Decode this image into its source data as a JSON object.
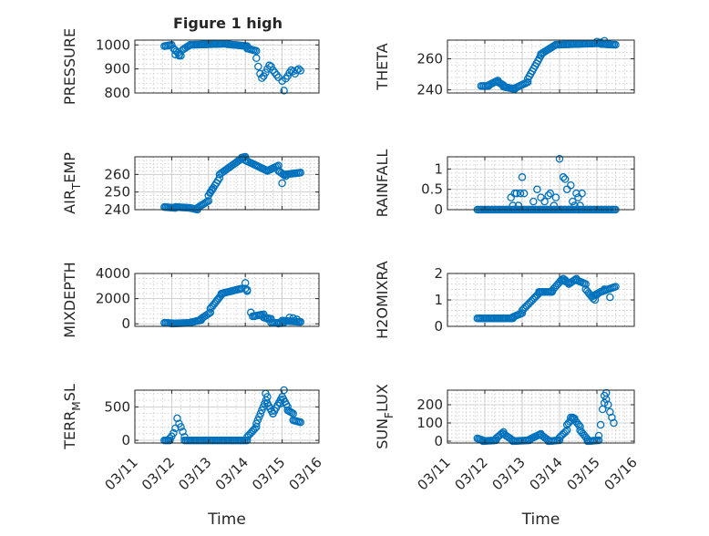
{
  "figure_title": "Figure 1 high",
  "marker_color": "#0072BD",
  "chart_data": [
    {
      "type": "scatter",
      "ylabel_main": "PRESSURE",
      "ylabel_sub": "",
      "ylabel_tail": "",
      "xlim": [
        0,
        5
      ],
      "ylim": [
        800,
        1020
      ],
      "yticks": [
        800,
        900,
        1000
      ],
      "xticks": [],
      "xticklabels": [],
      "xlabel": "",
      "title": "Figure 1 high",
      "segments": [
        [
          0.8,
          1,
          995,
          1000
        ],
        [
          1.05,
          1.25,
          985,
          955
        ],
        [
          1.3,
          1.5,
          980,
          1000
        ],
        [
          1.5,
          2.5,
          1000,
          1005
        ],
        [
          2.5,
          3.05,
          1003,
          995
        ],
        [
          3.05,
          3.3,
          985,
          975
        ]
      ],
      "points": [
        [
          1.1,
          960
        ],
        [
          1.2,
          955
        ],
        [
          3.3,
          945
        ],
        [
          3.35,
          910
        ],
        [
          3.4,
          880
        ],
        [
          3.45,
          862
        ],
        [
          3.5,
          870
        ],
        [
          3.55,
          885
        ],
        [
          3.6,
          900
        ],
        [
          3.65,
          915
        ],
        [
          3.7,
          910
        ],
        [
          3.75,
          895
        ],
        [
          3.8,
          885
        ],
        [
          3.85,
          875
        ],
        [
          3.9,
          865
        ],
        [
          4.0,
          850
        ],
        [
          4.05,
          810
        ],
        [
          4.1,
          860
        ],
        [
          4.15,
          870
        ],
        [
          4.2,
          885
        ],
        [
          4.25,
          895
        ],
        [
          4.3,
          890
        ],
        [
          4.35,
          880
        ],
        [
          4.4,
          895
        ],
        [
          4.45,
          900
        ],
        [
          4.5,
          893
        ]
      ]
    },
    {
      "type": "scatter",
      "ylabel_main": "THETA",
      "ylabel_sub": "",
      "ylabel_tail": "",
      "xlim": [
        0,
        5
      ],
      "ylim": [
        238,
        272
      ],
      "yticks": [
        240,
        260
      ],
      "xticks": [],
      "xticklabels": [],
      "xlabel": "",
      "segments": [
        [
          0.9,
          1.1,
          242.5,
          242.5
        ],
        [
          1.1,
          1.35,
          243,
          246
        ],
        [
          1.35,
          1.5,
          245,
          243
        ],
        [
          1.5,
          1.8,
          242,
          240.5
        ],
        [
          1.8,
          2.15,
          241,
          245
        ],
        [
          2.15,
          2.5,
          247,
          262
        ],
        [
          2.5,
          2.9,
          263,
          269
        ],
        [
          2.9,
          4.1,
          269,
          270
        ],
        [
          4.1,
          4.5,
          269.5,
          269
        ]
      ],
      "points": [
        [
          4.0,
          271
        ],
        [
          4.1,
          270.5
        ],
        [
          4.2,
          271.5
        ]
      ]
    },
    {
      "type": "scatter",
      "ylabel_main": "AIR",
      "ylabel_sub": "T",
      "ylabel_tail": "EMP",
      "xlim": [
        0,
        5
      ],
      "ylim": [
        240,
        270
      ],
      "yticks": [
        240,
        250,
        260
      ],
      "xticks": [],
      "xticklabels": [],
      "xlabel": "",
      "segments": [
        [
          0.8,
          1.1,
          241.5,
          241
        ],
        [
          1.1,
          1.5,
          241.5,
          241
        ],
        [
          1.5,
          1.7,
          241,
          240
        ],
        [
          1.7,
          2.0,
          241,
          245
        ],
        [
          2.0,
          2.3,
          248,
          258
        ],
        [
          2.3,
          2.9,
          260,
          269
        ],
        [
          2.9,
          3.0,
          269.5,
          270
        ],
        [
          3.0,
          3.3,
          268,
          265
        ],
        [
          3.3,
          3.6,
          265,
          262
        ],
        [
          3.6,
          3.9,
          262,
          265
        ],
        [
          3.9,
          4.1,
          262,
          259
        ],
        [
          4.1,
          4.5,
          260,
          261
        ]
      ],
      "points": [
        [
          4.0,
          255
        ],
        [
          2.05,
          250
        ],
        [
          2.1,
          251.5
        ]
      ]
    },
    {
      "type": "scatter",
      "ylabel_main": "RAINFALL",
      "ylabel_sub": "",
      "ylabel_tail": "",
      "xlim": [
        0,
        5
      ],
      "ylim": [
        0,
        1.3
      ],
      "yticks": [
        0,
        0.5,
        1
      ],
      "yticklabels": [
        "0",
        "0.5",
        "1"
      ],
      "xticks": [],
      "xticklabels": [],
      "xlabel": "",
      "segments": [
        [
          0.8,
          4.5,
          0,
          0
        ]
      ],
      "points": [
        [
          1.7,
          0.3
        ],
        [
          1.75,
          0.1
        ],
        [
          1.8,
          0.4
        ],
        [
          1.85,
          0.4
        ],
        [
          1.9,
          0.1
        ],
        [
          1.95,
          0.4
        ],
        [
          2.0,
          0.8
        ],
        [
          2.05,
          0.4
        ],
        [
          2.3,
          0.2
        ],
        [
          2.4,
          0.5
        ],
        [
          2.5,
          0.3
        ],
        [
          2.6,
          0.2
        ],
        [
          2.7,
          0.35
        ],
        [
          2.75,
          0.4
        ],
        [
          2.85,
          0.1
        ],
        [
          2.9,
          0.3
        ],
        [
          3.0,
          1.25
        ],
        [
          3.1,
          0.8
        ],
        [
          3.15,
          0.75
        ],
        [
          3.2,
          0.5
        ],
        [
          3.3,
          0.6
        ],
        [
          3.35,
          0.2
        ],
        [
          3.4,
          0.1
        ],
        [
          3.45,
          0.4
        ],
        [
          3.5,
          0.3
        ],
        [
          3.55,
          0.1
        ],
        [
          3.6,
          0.4
        ]
      ]
    },
    {
      "type": "scatter",
      "ylabel_main": "MIXDEPTH",
      "ylabel_sub": "",
      "ylabel_tail": "",
      "xlim": [
        0,
        5
      ],
      "ylim": [
        -200,
        4000
      ],
      "yticks": [
        0,
        2000,
        4000
      ],
      "xticks": [],
      "xticklabels": [],
      "xlabel": "",
      "segments": [
        [
          0.8,
          1.0,
          80,
          50
        ],
        [
          1.0,
          1.5,
          20,
          80
        ],
        [
          1.5,
          1.8,
          100,
          300
        ],
        [
          1.8,
          2.05,
          400,
          900
        ],
        [
          2.05,
          2.35,
          1200,
          2300
        ],
        [
          2.35,
          2.9,
          2400,
          2800
        ],
        [
          3.0,
          3.05,
          2800,
          2700
        ],
        [
          3.2,
          3.5,
          600,
          750
        ],
        [
          3.5,
          3.7,
          500,
          400
        ],
        [
          3.7,
          4.0,
          100,
          50
        ],
        [
          4.0,
          4.5,
          250,
          150
        ]
      ],
      "points": [
        [
          3.0,
          3250
        ],
        [
          3.05,
          2600
        ],
        [
          3.15,
          900
        ],
        [
          3.25,
          600
        ],
        [
          3.4,
          700
        ],
        [
          3.6,
          400
        ],
        [
          3.9,
          20
        ],
        [
          4.05,
          100
        ],
        [
          4.2,
          500
        ],
        [
          4.3,
          450
        ],
        [
          4.4,
          350
        ]
      ]
    },
    {
      "type": "scatter",
      "ylabel_main": "H2OMIXRA",
      "ylabel_sub": "",
      "ylabel_tail": "",
      "xlim": [
        0,
        5
      ],
      "ylim": [
        0,
        2
      ],
      "yticks": [
        0,
        1,
        2
      ],
      "xticks": [],
      "xticklabels": [],
      "xlabel": "",
      "segments": [
        [
          0.8,
          1.75,
          0.3,
          0.3
        ],
        [
          1.75,
          2.0,
          0.35,
          0.5
        ],
        [
          2.0,
          2.45,
          0.6,
          1.25
        ],
        [
          2.45,
          2.8,
          1.3,
          1.3
        ],
        [
          2.8,
          3.05,
          1.35,
          1.75
        ],
        [
          3.05,
          3.25,
          1.75,
          1.65
        ],
        [
          3.25,
          3.45,
          1.6,
          1.8
        ],
        [
          3.45,
          3.7,
          1.75,
          1.6
        ],
        [
          3.7,
          3.9,
          1.4,
          1.05
        ],
        [
          3.9,
          4.1,
          1.15,
          1.3
        ],
        [
          4.1,
          4.5,
          1.3,
          1.5
        ]
      ],
      "points": [
        [
          3.1,
          1.8
        ],
        [
          3.15,
          1.75
        ],
        [
          3.95,
          1.0
        ],
        [
          4.0,
          1.2
        ],
        [
          4.2,
          1.4
        ],
        [
          4.35,
          1.1
        ]
      ]
    },
    {
      "type": "scatter",
      "ylabel_main": "TERR",
      "ylabel_sub": "M",
      "ylabel_tail": "SL",
      "xlim": [
        0,
        5
      ],
      "ylim": [
        -40,
        750
      ],
      "yticks": [
        0,
        500
      ],
      "xticks": [
        0,
        1,
        2,
        3,
        4,
        5
      ],
      "xticklabels": [
        "03/11",
        "03/12",
        "03/13",
        "03/14",
        "03/15",
        "03/16"
      ],
      "xlabel": "Time",
      "segments": [
        [
          0.8,
          0.95,
          0,
          0
        ],
        [
          1.35,
          3.05,
          0,
          0
        ],
        [
          3.05,
          3.3,
          50,
          200
        ],
        [
          3.3,
          3.6,
          250,
          650
        ],
        [
          3.6,
          3.75,
          550,
          400
        ],
        [
          3.75,
          4.0,
          400,
          650
        ],
        [
          4.0,
          4.15,
          650,
          500
        ],
        [
          4.15,
          4.3,
          450,
          400
        ],
        [
          4.3,
          4.5,
          300,
          270
        ]
      ],
      "points": [
        [
          0.95,
          30
        ],
        [
          1.0,
          60
        ],
        [
          1.05,
          110
        ],
        [
          1.1,
          180
        ],
        [
          1.15,
          330
        ],
        [
          1.2,
          250
        ],
        [
          1.25,
          200
        ],
        [
          1.3,
          130
        ],
        [
          1.35,
          50
        ],
        [
          3.55,
          700
        ],
        [
          4.05,
          750
        ],
        [
          3.95,
          550
        ]
      ]
    },
    {
      "type": "scatter",
      "ylabel_main": "SUN",
      "ylabel_sub": "F",
      "ylabel_tail": "LUX",
      "xlim": [
        0,
        5
      ],
      "ylim": [
        -10,
        280
      ],
      "yticks": [
        0,
        100,
        200
      ],
      "xticks": [
        0,
        1,
        2,
        3,
        4,
        5
      ],
      "xticklabels": [
        "03/11",
        "03/12",
        "03/13",
        "03/14",
        "03/15",
        "03/16"
      ],
      "xlabel": "Time",
      "segments": [
        [
          0.8,
          0.95,
          15,
          5
        ],
        [
          0.95,
          1.3,
          0,
          5
        ],
        [
          1.3,
          1.5,
          15,
          50
        ],
        [
          1.5,
          1.75,
          40,
          5
        ],
        [
          1.75,
          2.2,
          0,
          5
        ],
        [
          2.2,
          2.5,
          10,
          40
        ],
        [
          2.5,
          2.7,
          35,
          5
        ],
        [
          2.7,
          3.0,
          0,
          5
        ],
        [
          3.0,
          3.2,
          20,
          60
        ],
        [
          3.2,
          3.35,
          90,
          125
        ],
        [
          3.35,
          3.55,
          130,
          80
        ],
        [
          3.55,
          3.75,
          60,
          10
        ],
        [
          3.75,
          4.05,
          0,
          5
        ]
      ],
      "points": [
        [
          3.3,
          130
        ],
        [
          3.4,
          125
        ],
        [
          4.05,
          30
        ],
        [
          4.1,
          90
        ],
        [
          4.15,
          175
        ],
        [
          4.2,
          250
        ],
        [
          4.25,
          265
        ],
        [
          4.3,
          200
        ],
        [
          4.35,
          160
        ],
        [
          4.4,
          130
        ],
        [
          4.45,
          100
        ],
        [
          4.2,
          210
        ],
        [
          4.25,
          230
        ]
      ]
    }
  ]
}
